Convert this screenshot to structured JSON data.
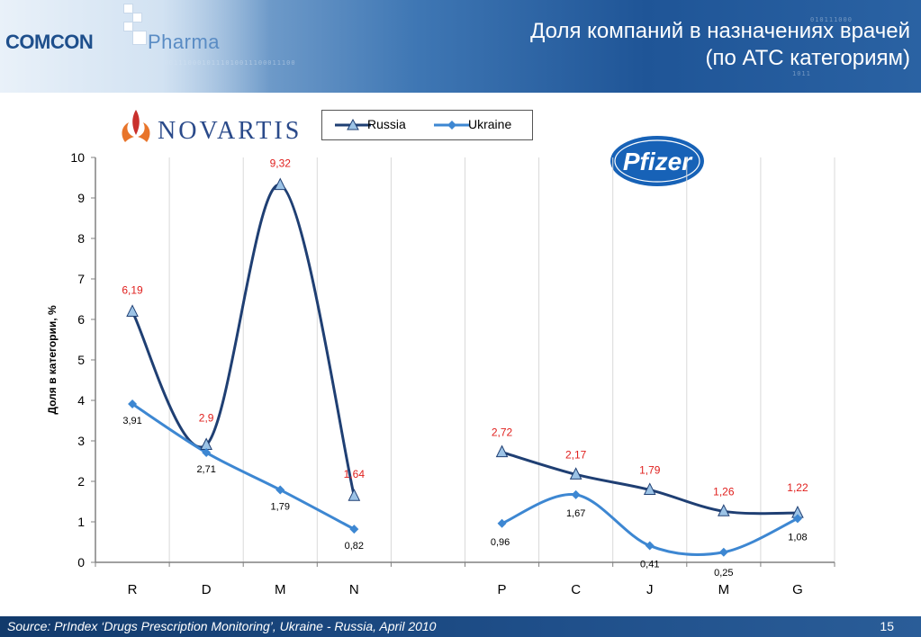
{
  "header": {
    "brand_main": "COMCON",
    "brand_sub": "Pharma",
    "title_line1": "Доля компаний в назначениях врачей",
    "title_line2": "(по АТС категориям)"
  },
  "logos": {
    "novartis": "NOVARTIS",
    "pfizer": "Pfizer"
  },
  "footer": {
    "source": "Source:  PrIndex  ‘Drugs Prescription Monitoring’, Ukraine - Russia, April 2010",
    "page_number": "15"
  },
  "colors": {
    "russia": "#1f3f73",
    "ukraine": "#3d87d2",
    "russia_label": "#e0201e",
    "ukraine_label": "#000000"
  },
  "chart_data": {
    "type": "line",
    "categories": [
      "R",
      "D",
      "M",
      "N",
      "",
      "P",
      "C",
      "J",
      "M",
      "G"
    ],
    "ylabel": "Доля в категории, %",
    "ylim": [
      0,
      10
    ],
    "yticks": [
      "0",
      "1",
      "2",
      "3",
      "4",
      "5",
      "6",
      "7",
      "8",
      "9",
      "10"
    ],
    "legend_position": "top-center",
    "grid": "vertical",
    "series": [
      {
        "name": "Russia",
        "marker": "triangle",
        "segments": [
          {
            "indices": [
              0,
              1,
              2,
              3
            ],
            "values": [
              6.19,
              2.9,
              9.32,
              1.64
            ],
            "labels": [
              "6,19",
              "2,9",
              "9,32",
              "1,64"
            ]
          },
          {
            "indices": [
              5,
              6,
              7,
              8,
              9
            ],
            "values": [
              2.72,
              2.17,
              1.79,
              1.26,
              1.22
            ],
            "labels": [
              "2,72",
              "2,17",
              "1,79",
              "1,26",
              "1,22"
            ]
          }
        ]
      },
      {
        "name": "Ukraine",
        "marker": "diamond",
        "segments": [
          {
            "indices": [
              0,
              1,
              2,
              3
            ],
            "values": [
              3.91,
              2.71,
              1.79,
              0.82
            ],
            "labels": [
              "3,91",
              "2,71",
              "1,79",
              "0,82"
            ]
          },
          {
            "indices": [
              5,
              6,
              7,
              8,
              9
            ],
            "values": [
              0.96,
              1.67,
              0.41,
              0.25,
              1.08
            ],
            "labels": [
              "0,96",
              "1,67",
              "0,41",
              "0,25",
              "1,08"
            ]
          }
        ]
      }
    ]
  }
}
